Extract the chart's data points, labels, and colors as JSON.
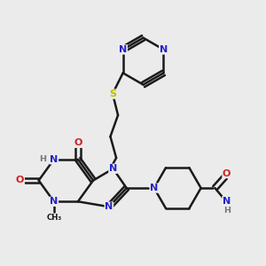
{
  "bg_color": "#ebebeb",
  "bond_color": "#1a1a1a",
  "N_color": "#2222cc",
  "O_color": "#cc2222",
  "S_color": "#bbbb00",
  "H_color": "#777777",
  "line_width": 1.8,
  "font_size": 8.0,
  "xlim": [
    0.5,
    9.5
  ],
  "ylim": [
    1.5,
    9.5
  ]
}
